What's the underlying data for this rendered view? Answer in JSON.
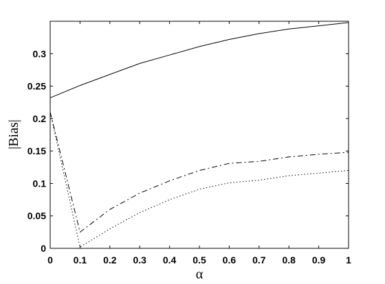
{
  "chart_data": {
    "type": "line",
    "xlabel": "α",
    "ylabel": "|Bias|",
    "xlim": [
      0,
      1
    ],
    "ylim": [
      0,
      0.35
    ],
    "grid": false,
    "x_ticks": [
      "0",
      "0.1",
      "0.2",
      "0.3",
      "0.4",
      "0.5",
      "0.6",
      "0.7",
      "0.8",
      "0.9",
      "1"
    ],
    "y_ticks": [
      "0",
      "0.05",
      "0.1",
      "0.15",
      "0.2",
      "0.25",
      "0.3"
    ],
    "x": [
      0,
      0.1,
      0.2,
      0.3,
      0.4,
      0.5,
      0.6,
      0.7,
      0.8,
      0.9,
      1.0
    ],
    "series": [
      {
        "style": "solid",
        "values": [
          0.232,
          0.251,
          0.268,
          0.285,
          0.298,
          0.311,
          0.322,
          0.331,
          0.338,
          0.343,
          0.348
        ]
      },
      {
        "style": "dashed",
        "values": [
          0.21,
          0.025,
          0.06,
          0.085,
          0.104,
          0.12,
          0.131,
          0.134,
          0.141,
          0.145,
          0.148
        ]
      },
      {
        "style": "dotted",
        "values": [
          0.21,
          0.002,
          0.03,
          0.055,
          0.075,
          0.091,
          0.101,
          0.105,
          0.112,
          0.116,
          0.12
        ]
      }
    ]
  }
}
